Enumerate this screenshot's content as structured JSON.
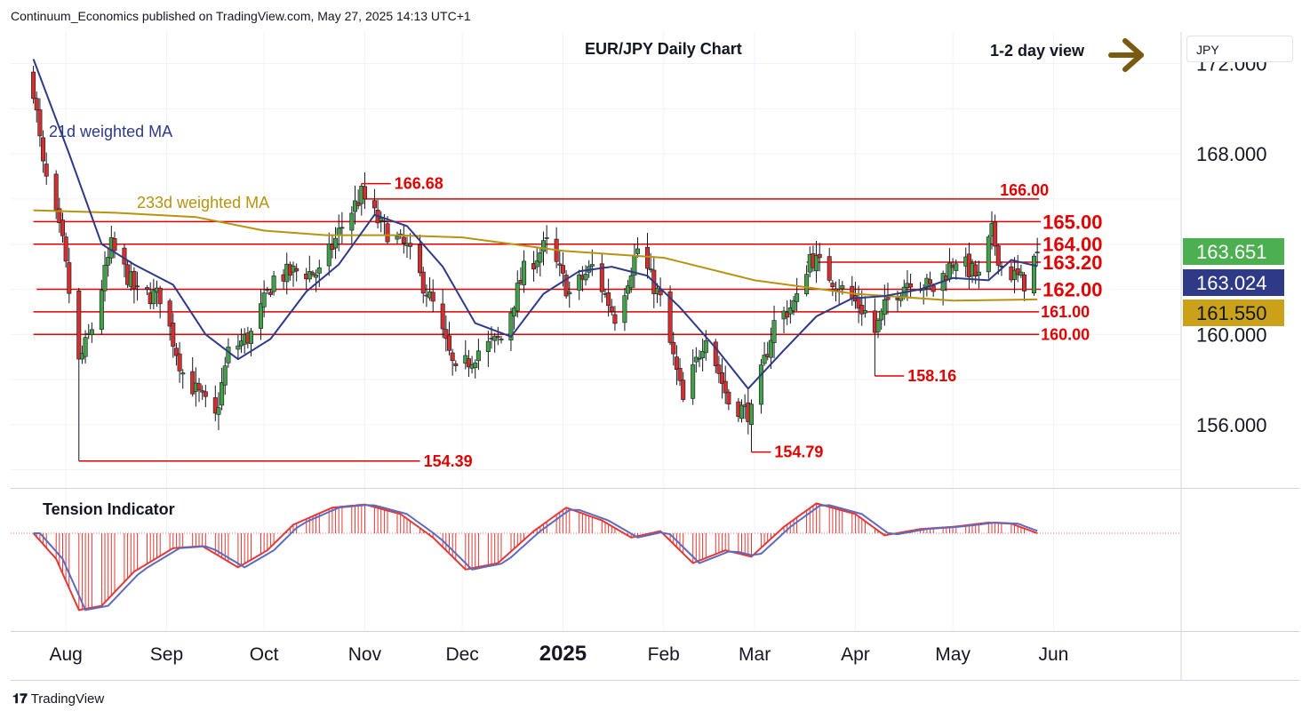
{
  "header": {
    "title": "Continuum_Economics published on TradingView.com, May 27, 2025 14:13 UTC+1",
    "view_label": "1-2 day view",
    "currency": "JPY",
    "brand": "TradingView"
  },
  "chart_data": {
    "type": "candlestick",
    "title": "EUR/JPY Daily Chart",
    "ylim": [
      153.2,
      173.4
    ],
    "y_ticks": [
      "172.000",
      "168.000",
      "160.000",
      "156.000"
    ],
    "x_ticks": [
      "Aug",
      "Sep",
      "Oct",
      "Nov",
      "Dec",
      "2025",
      "Feb",
      "Mar",
      "Apr",
      "May",
      "Jun"
    ],
    "ma_labels": {
      "ma21": "21d weighted MA",
      "ma233": "233d weighted MA"
    },
    "price_badges": [
      {
        "label": "163.651",
        "value": 163.651,
        "color": "#4caf50"
      },
      {
        "label": "163.024",
        "value": 163.024,
        "color": "#2e3a87"
      },
      {
        "label": "161.550",
        "value": 161.55,
        "color": "#c9a21a"
      }
    ],
    "levels": [
      {
        "value": 166.0,
        "label": "166.00",
        "x_start": "2024-11-01",
        "major": false
      },
      {
        "value": 165.0,
        "label": "165.00",
        "x_start": "2024-07-22",
        "major": true
      },
      {
        "value": 164.0,
        "label": "164.00",
        "x_start": "2024-07-22",
        "major": true
      },
      {
        "value": 163.2,
        "label": "163.20",
        "x_start": "2025-03-17",
        "major": true
      },
      {
        "value": 162.0,
        "label": "162.00",
        "x_start": "2024-07-23",
        "major": true
      },
      {
        "value": 161.0,
        "label": "161.00",
        "x_start": "2024-07-22",
        "major": false
      },
      {
        "value": 160.0,
        "label": "160.00",
        "x_start": "2024-07-22",
        "major": false
      }
    ],
    "annotations": [
      {
        "value": 166.68,
        "label": "166.68",
        "x": "2024-10-31",
        "label_x": "2024-11-09"
      },
      {
        "value": 158.16,
        "label": "158.16",
        "x": "2025-04-07",
        "label_x": "2025-04-16"
      },
      {
        "value": 154.79,
        "label": "154.79",
        "x": "2025-02-28",
        "label_x": "2025-03-06"
      },
      {
        "value": 154.39,
        "label": "154.39",
        "x": "2024-08-05",
        "label_x": "2024-11-18"
      }
    ],
    "anchors": [
      {
        "date": "2024-07-22",
        "close": 170.9
      },
      {
        "date": "2024-07-25",
        "close": 167.4
      },
      {
        "date": "2024-07-31",
        "close": 164.0
      },
      {
        "date": "2024-08-05",
        "close": 158.7
      },
      {
        "date": "2024-08-09",
        "close": 160.3
      },
      {
        "date": "2024-08-15",
        "close": 163.9
      },
      {
        "date": "2024-08-23",
        "close": 161.8
      },
      {
        "date": "2024-08-30",
        "close": 161.7
      },
      {
        "date": "2024-09-06",
        "close": 158.3
      },
      {
        "date": "2024-09-16",
        "close": 156.3
      },
      {
        "date": "2024-09-20",
        "close": 159.2
      },
      {
        "date": "2024-09-27",
        "close": 160.0
      },
      {
        "date": "2024-10-04",
        "close": 162.5
      },
      {
        "date": "2024-10-11",
        "close": 162.8
      },
      {
        "date": "2024-10-18",
        "close": 162.7
      },
      {
        "date": "2024-10-25",
        "close": 164.8
      },
      {
        "date": "2024-10-31",
        "close": 166.2
      },
      {
        "date": "2024-11-06",
        "close": 164.8
      },
      {
        "date": "2024-11-14",
        "close": 163.8
      },
      {
        "date": "2024-11-22",
        "close": 161.3
      },
      {
        "date": "2024-11-29",
        "close": 158.2
      },
      {
        "date": "2024-12-06",
        "close": 159.3
      },
      {
        "date": "2024-12-13",
        "close": 159.8
      },
      {
        "date": "2024-12-20",
        "close": 162.8
      },
      {
        "date": "2024-12-27",
        "close": 164.0
      },
      {
        "date": "2025-01-03",
        "close": 161.8
      },
      {
        "date": "2025-01-10",
        "close": 163.0
      },
      {
        "date": "2025-01-17",
        "close": 160.8
      },
      {
        "date": "2025-01-24",
        "close": 163.8
      },
      {
        "date": "2025-01-31",
        "close": 161.5
      },
      {
        "date": "2025-02-07",
        "close": 157.0
      },
      {
        "date": "2025-02-14",
        "close": 160.1
      },
      {
        "date": "2025-02-21",
        "close": 157.0
      },
      {
        "date": "2025-02-28",
        "close": 156.5
      },
      {
        "date": "2025-03-07",
        "close": 160.5
      },
      {
        "date": "2025-03-14",
        "close": 161.5
      },
      {
        "date": "2025-03-18",
        "close": 163.5
      },
      {
        "date": "2025-03-28",
        "close": 162.0
      },
      {
        "date": "2025-04-04",
        "close": 161.0
      },
      {
        "date": "2025-04-07",
        "close": 160.1
      },
      {
        "date": "2025-04-11",
        "close": 161.5
      },
      {
        "date": "2025-04-18",
        "close": 162.5
      },
      {
        "date": "2025-04-25",
        "close": 162.0
      },
      {
        "date": "2025-05-02",
        "close": 163.4
      },
      {
        "date": "2025-05-09",
        "close": 162.5
      },
      {
        "date": "2025-05-13",
        "close": 164.5
      },
      {
        "date": "2025-05-16",
        "close": 163.0
      },
      {
        "date": "2025-05-23",
        "close": 162.3
      },
      {
        "date": "2025-05-27",
        "close": 163.651
      }
    ],
    "ma21": [
      {
        "date": "2024-07-22",
        "value": 172.2
      },
      {
        "date": "2024-08-02",
        "value": 168.0
      },
      {
        "date": "2024-08-12",
        "value": 164.0
      },
      {
        "date": "2024-08-22",
        "value": 163.1
      },
      {
        "date": "2024-09-03",
        "value": 162.2
      },
      {
        "date": "2024-09-13",
        "value": 160.0
      },
      {
        "date": "2024-09-23",
        "value": 158.9
      },
      {
        "date": "2024-10-03",
        "value": 159.8
      },
      {
        "date": "2024-10-14",
        "value": 161.9
      },
      {
        "date": "2024-10-24",
        "value": 163.1
      },
      {
        "date": "2024-11-04",
        "value": 165.3
      },
      {
        "date": "2024-11-14",
        "value": 164.8
      },
      {
        "date": "2024-11-25",
        "value": 163.0
      },
      {
        "date": "2024-12-05",
        "value": 160.5
      },
      {
        "date": "2024-12-16",
        "value": 159.9
      },
      {
        "date": "2024-12-26",
        "value": 161.8
      },
      {
        "date": "2025-01-06",
        "value": 162.8
      },
      {
        "date": "2025-01-16",
        "value": 163.0
      },
      {
        "date": "2025-01-27",
        "value": 162.6
      },
      {
        "date": "2025-02-06",
        "value": 161.2
      },
      {
        "date": "2025-02-17",
        "value": 159.4
      },
      {
        "date": "2025-02-27",
        "value": 157.6
      },
      {
        "date": "2025-03-10",
        "value": 159.3
      },
      {
        "date": "2025-03-20",
        "value": 160.8
      },
      {
        "date": "2025-03-31",
        "value": 161.6
      },
      {
        "date": "2025-04-10",
        "value": 161.7
      },
      {
        "date": "2025-04-21",
        "value": 162.0
      },
      {
        "date": "2025-05-01",
        "value": 162.5
      },
      {
        "date": "2025-05-12",
        "value": 162.4
      },
      {
        "date": "2025-05-19",
        "value": 163.3
      },
      {
        "date": "2025-05-27",
        "value": 163.024
      }
    ],
    "ma233": [
      {
        "date": "2024-07-22",
        "value": 165.5
      },
      {
        "date": "2024-08-15",
        "value": 165.4
      },
      {
        "date": "2024-09-10",
        "value": 165.2
      },
      {
        "date": "2024-10-01",
        "value": 164.6
      },
      {
        "date": "2024-10-20",
        "value": 164.4
      },
      {
        "date": "2024-11-10",
        "value": 164.4
      },
      {
        "date": "2024-12-01",
        "value": 164.3
      },
      {
        "date": "2025-01-01",
        "value": 163.7
      },
      {
        "date": "2025-02-01",
        "value": 163.4
      },
      {
        "date": "2025-03-01",
        "value": 162.4
      },
      {
        "date": "2025-04-01",
        "value": 161.8
      },
      {
        "date": "2025-05-01",
        "value": 161.5
      },
      {
        "date": "2025-05-27",
        "value": 161.55
      }
    ],
    "tension": {
      "label": "Tension Indicator",
      "ylim": [
        -4.5,
        2.0
      ],
      "points": [
        {
          "date": "2024-07-22",
          "value": 0.0
        },
        {
          "date": "2024-07-29",
          "value": -1.2
        },
        {
          "date": "2024-08-05",
          "value": -3.6
        },
        {
          "date": "2024-08-12",
          "value": -3.4
        },
        {
          "date": "2024-08-22",
          "value": -1.8
        },
        {
          "date": "2024-09-03",
          "value": -0.7
        },
        {
          "date": "2024-09-12",
          "value": -0.6
        },
        {
          "date": "2024-09-23",
          "value": -1.6
        },
        {
          "date": "2024-10-02",
          "value": -0.8
        },
        {
          "date": "2024-10-10",
          "value": 0.4
        },
        {
          "date": "2024-10-22",
          "value": 1.2
        },
        {
          "date": "2024-11-01",
          "value": 1.35
        },
        {
          "date": "2024-11-12",
          "value": 0.9
        },
        {
          "date": "2024-11-22",
          "value": -0.2
        },
        {
          "date": "2024-12-02",
          "value": -1.7
        },
        {
          "date": "2024-12-12",
          "value": -1.4
        },
        {
          "date": "2024-12-23",
          "value": 0.1
        },
        {
          "date": "2025-01-02",
          "value": 1.2
        },
        {
          "date": "2025-01-13",
          "value": 0.6
        },
        {
          "date": "2025-01-22",
          "value": -0.2
        },
        {
          "date": "2025-01-31",
          "value": 0.1
        },
        {
          "date": "2025-02-10",
          "value": -1.4
        },
        {
          "date": "2025-02-20",
          "value": -0.8
        },
        {
          "date": "2025-02-28",
          "value": -1.1
        },
        {
          "date": "2025-03-10",
          "value": 0.3
        },
        {
          "date": "2025-03-20",
          "value": 1.4
        },
        {
          "date": "2025-04-01",
          "value": 0.9
        },
        {
          "date": "2025-04-10",
          "value": -0.1
        },
        {
          "date": "2025-04-21",
          "value": 0.2
        },
        {
          "date": "2025-05-01",
          "value": 0.3
        },
        {
          "date": "2025-05-12",
          "value": 0.5
        },
        {
          "date": "2025-05-19",
          "value": 0.45
        },
        {
          "date": "2025-05-27",
          "value": 0.0
        }
      ]
    }
  }
}
